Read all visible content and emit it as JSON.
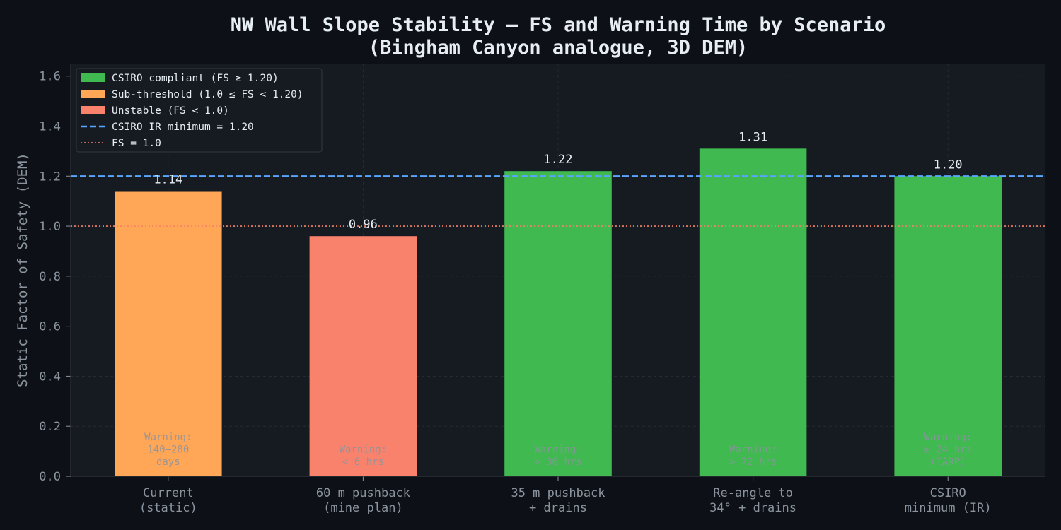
{
  "chart_data": {
    "type": "bar",
    "title": "NW Wall Slope Stability — FS and Warning Time by Scenario",
    "subtitle": "(Bingham Canyon analogue, 3D DEM)",
    "xlabel": "",
    "ylabel": "Static Factor of Safety (DEM)",
    "ylim": [
      0,
      1.65
    ],
    "yticks": [
      "0.0",
      "0.2",
      "0.4",
      "0.6",
      "0.8",
      "1.0",
      "1.2",
      "1.4",
      "1.6"
    ],
    "grid": true,
    "legend_position": "top-left",
    "categories": [
      [
        "Current",
        "(static)"
      ],
      [
        "60 m pushback",
        "(mine plan)"
      ],
      [
        "35 m pushback",
        "+ drains"
      ],
      [
        "Re-angle to",
        "34° + drains"
      ],
      [
        "CSIRO",
        "minimum (IR)"
      ]
    ],
    "values": [
      1.14,
      0.96,
      1.22,
      1.31,
      1.2
    ],
    "value_labels": [
      "1.14",
      "0.96",
      "1.22",
      "1.31",
      "1.20"
    ],
    "status": [
      "sub",
      "unstable",
      "compliant",
      "compliant",
      "compliant"
    ],
    "warnings": [
      [
        "Warning:",
        "140–280",
        "days"
      ],
      [
        "Warning:",
        "< 6 hrs"
      ],
      [
        "Warning:",
        "> 36 hrs"
      ],
      [
        "Warning:",
        "> 72 hrs"
      ],
      [
        "Warning:",
        "≥ 24 hrs",
        "(TARP)"
      ]
    ],
    "reference_lines": [
      {
        "value": 1.2,
        "style": "dashed",
        "color": "#58a6ff",
        "label": "CSIRO IR minimum = 1.20"
      },
      {
        "value": 1.0,
        "style": "dotted",
        "color": "#f78166",
        "label": "FS = 1.0"
      }
    ],
    "legend": [
      {
        "label": "CSIRO compliant (FS ≥ 1.20)",
        "color": "#3fb950",
        "kind": "patch"
      },
      {
        "label": "Sub-threshold (1.0 ≤ FS < 1.20)",
        "color": "#ffa657",
        "kind": "patch"
      },
      {
        "label": "Unstable (FS < 1.0)",
        "color": "#f9826c",
        "kind": "patch"
      },
      {
        "label": "CSIRO IR minimum = 1.20",
        "color": "#58a6ff",
        "kind": "dashed"
      },
      {
        "label": "FS = 1.0",
        "color": "#f78166",
        "kind": "dotted"
      }
    ],
    "colors": {
      "compliant": "#3fb950",
      "sub": "#ffa657",
      "unstable": "#f9826c",
      "background": "#0d1117",
      "plot_background": "#161b22"
    }
  }
}
